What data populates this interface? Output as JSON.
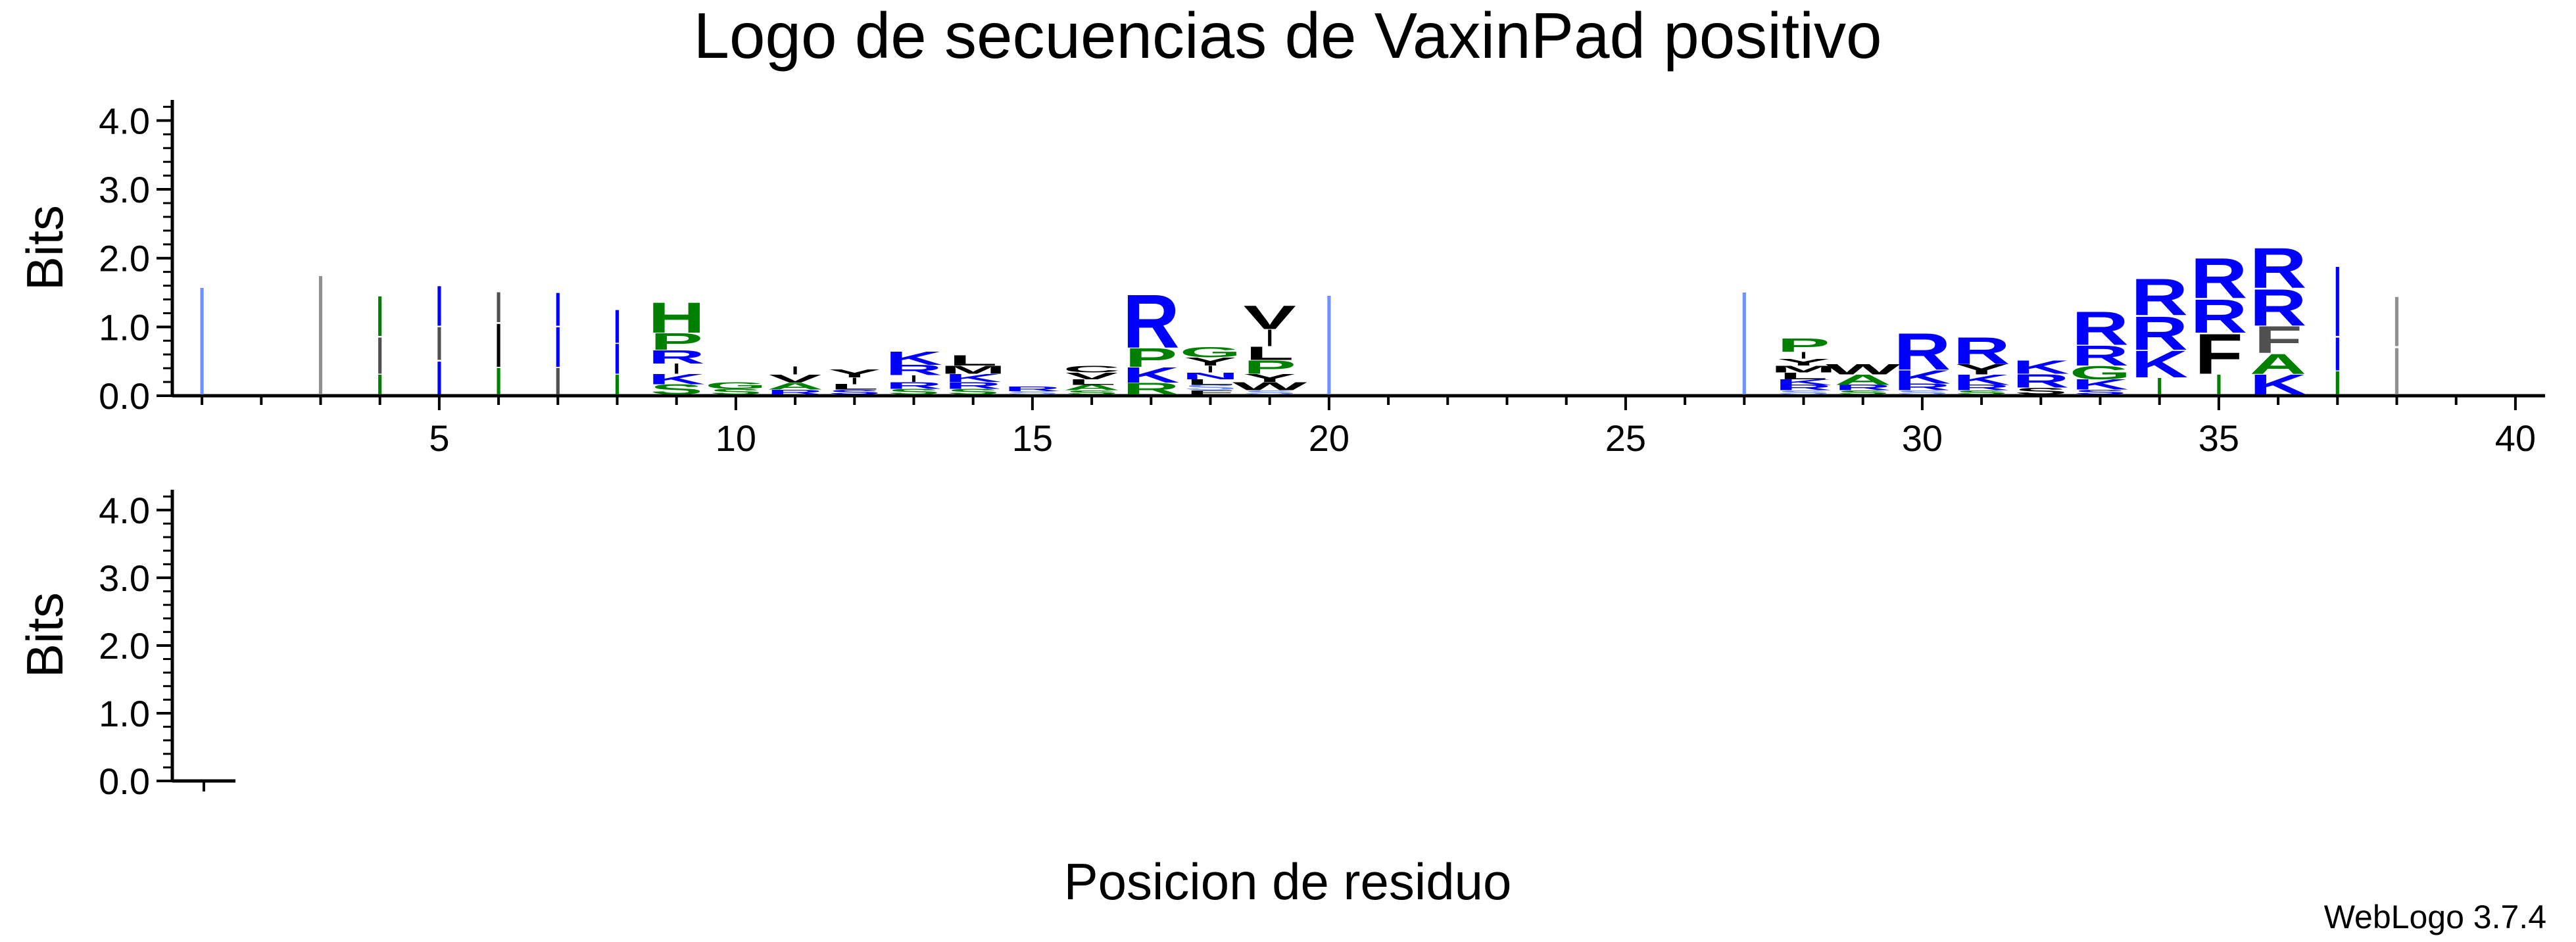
{
  "chart_data": {
    "type": "sequence-logo",
    "title": "Logo de secuencias de VaxinPad positivo",
    "xlabel": "Posicion de residuo",
    "ylabel": "Bits",
    "ylim": [
      0,
      4.3
    ],
    "y_ticks": [
      "0.0",
      "1.0",
      "2.0",
      "3.0",
      "4.0"
    ],
    "x_range": [
      0.5,
      40.5
    ],
    "x_ticks": [
      "5",
      "10",
      "15",
      "20",
      "25",
      "30",
      "35",
      "40"
    ],
    "second_panel_ylabel": "Bits",
    "second_panel_y_ticks": [
      "0.0",
      "1.0",
      "2.0",
      "3.0",
      "4.0"
    ],
    "colors": {
      "basic": "#0000ff",
      "polar": "#008000",
      "hydrophobic": "#000000",
      "pale_blue": "#7090ff"
    },
    "positions": [
      {
        "pos": 1,
        "stack": [
          {
            "letter": "I",
            "h": 1.62,
            "color": "#7090ff"
          }
        ]
      },
      {
        "pos": 3,
        "stack": [
          {
            "letter": "I",
            "h": 1.8,
            "color": "#909090"
          }
        ]
      },
      {
        "pos": 4,
        "stack": [
          {
            "letter": "I",
            "h": 0.3,
            "color": "#008000"
          },
          {
            "letter": "I",
            "h": 0.55,
            "color": "#505050"
          },
          {
            "letter": "I",
            "h": 0.6,
            "color": "#008000"
          }
        ]
      },
      {
        "pos": 5,
        "stack": [
          {
            "letter": "I",
            "h": 0.5,
            "color": "#0000ff"
          },
          {
            "letter": "I",
            "h": 0.5,
            "color": "#505050"
          },
          {
            "letter": "I",
            "h": 0.6,
            "color": "#0000ff"
          }
        ]
      },
      {
        "pos": 6,
        "stack": [
          {
            "letter": "I",
            "h": 0.4,
            "color": "#008000"
          },
          {
            "letter": "I",
            "h": 0.65,
            "color": "#000000"
          },
          {
            "letter": "I",
            "h": 0.45,
            "color": "#505050"
          }
        ]
      },
      {
        "pos": 7,
        "stack": [
          {
            "letter": "I",
            "h": 0.4,
            "color": "#505050"
          },
          {
            "letter": "I",
            "h": 0.6,
            "color": "#0000ff"
          },
          {
            "letter": "I",
            "h": 0.5,
            "color": "#0000ff"
          }
        ]
      },
      {
        "pos": 8,
        "stack": [
          {
            "letter": "I",
            "h": 0.3,
            "color": "#008000"
          },
          {
            "letter": "I",
            "h": 0.45,
            "color": "#0000ff"
          },
          {
            "letter": "I",
            "h": 0.5,
            "color": "#0000ff"
          }
        ]
      },
      {
        "pos": 9,
        "stack": [
          {
            "letter": "S",
            "h": 0.15,
            "color": "#008000"
          },
          {
            "letter": "K",
            "h": 0.15,
            "color": "#0000ff"
          },
          {
            "letter": "I",
            "h": 0.15,
            "color": "#000000"
          },
          {
            "letter": "R",
            "h": 0.2,
            "color": "#0000ff"
          },
          {
            "letter": "P",
            "h": 0.25,
            "color": "#008000"
          },
          {
            "letter": "H",
            "h": 0.45,
            "color": "#008000"
          }
        ]
      },
      {
        "pos": 10,
        "stack": [
          {
            "letter": "S",
            "h": 0.08,
            "color": "#008000"
          },
          {
            "letter": "G",
            "h": 0.1,
            "color": "#008000"
          }
        ]
      },
      {
        "pos": 11,
        "stack": [
          {
            "letter": "R",
            "h": 0.07,
            "color": "#0000ff"
          },
          {
            "letter": "A",
            "h": 0.1,
            "color": "#008000"
          },
          {
            "letter": "V",
            "h": 0.12,
            "color": "#000000"
          },
          {
            "letter": "I",
            "h": 0.12,
            "color": "#000000"
          }
        ]
      },
      {
        "pos": 12,
        "stack": [
          {
            "letter": "S",
            "h": 0.07,
            "color": "#0000ff"
          },
          {
            "letter": "L",
            "h": 0.08,
            "color": "#000000"
          },
          {
            "letter": "I",
            "h": 0.1,
            "color": "#000000"
          },
          {
            "letter": "Y",
            "h": 0.12,
            "color": "#000000"
          }
        ]
      },
      {
        "pos": 13,
        "stack": [
          {
            "letter": "S",
            "h": 0.08,
            "color": "#008000"
          },
          {
            "letter": "R",
            "h": 0.1,
            "color": "#0000ff"
          },
          {
            "letter": "I",
            "h": 0.1,
            "color": "#000000"
          },
          {
            "letter": "R",
            "h": 0.15,
            "color": "#0000ff"
          },
          {
            "letter": "K",
            "h": 0.2,
            "color": "#0000ff"
          }
        ]
      },
      {
        "pos": 14,
        "stack": [
          {
            "letter": "S",
            "h": 0.08,
            "color": "#008000"
          },
          {
            "letter": "R",
            "h": 0.1,
            "color": "#0000ff"
          },
          {
            "letter": "K",
            "h": 0.12,
            "color": "#0000ff"
          },
          {
            "letter": "M",
            "h": 0.12,
            "color": "#000000"
          },
          {
            "letter": "L",
            "h": 0.15,
            "color": "#000000"
          }
        ]
      },
      {
        "pos": 15,
        "stack": [
          {
            "letter": "S",
            "h": 0.05,
            "color": "#7090ff"
          },
          {
            "letter": "R",
            "h": 0.07,
            "color": "#0000ff"
          }
        ]
      },
      {
        "pos": 16,
        "stack": [
          {
            "letter": "S",
            "h": 0.06,
            "color": "#008000"
          },
          {
            "letter": "A",
            "h": 0.08,
            "color": "#008000"
          },
          {
            "letter": "L",
            "h": 0.08,
            "color": "#000000"
          },
          {
            "letter": "V",
            "h": 0.1,
            "color": "#000000"
          },
          {
            "letter": "C",
            "h": 0.1,
            "color": "#000000"
          }
        ]
      },
      {
        "pos": 17,
        "stack": [
          {
            "letter": "R",
            "h": 0.17,
            "color": "#008000"
          },
          {
            "letter": "K",
            "h": 0.23,
            "color": "#0000ff"
          },
          {
            "letter": "P",
            "h": 0.28,
            "color": "#008000"
          },
          {
            "letter": "R",
            "h": 0.8,
            "color": "#0000ff"
          }
        ]
      },
      {
        "pos": 18,
        "stack": [
          {
            "letter": "F",
            "h": 0.06,
            "color": "#000000"
          },
          {
            "letter": "S",
            "h": 0.08,
            "color": "#7090ff"
          },
          {
            "letter": "L",
            "h": 0.08,
            "color": "#000000"
          },
          {
            "letter": "N",
            "h": 0.1,
            "color": "#0000ff"
          },
          {
            "letter": "I",
            "h": 0.1,
            "color": "#000000"
          },
          {
            "letter": "Y",
            "h": 0.12,
            "color": "#000000"
          },
          {
            "letter": "G",
            "h": 0.15,
            "color": "#008000"
          }
        ]
      },
      {
        "pos": 19,
        "stack": [
          {
            "letter": "S",
            "h": 0.06,
            "color": "#7090ff"
          },
          {
            "letter": "W",
            "h": 0.12,
            "color": "#000000"
          },
          {
            "letter": "Y",
            "h": 0.12,
            "color": "#000000"
          },
          {
            "letter": "P",
            "h": 0.2,
            "color": "#008000"
          },
          {
            "letter": "L",
            "h": 0.2,
            "color": "#000000"
          },
          {
            "letter": "I",
            "h": 0.25,
            "color": "#000000"
          },
          {
            "letter": "V",
            "h": 0.35,
            "color": "#000000"
          }
        ]
      },
      {
        "pos": 20,
        "stack": [
          {
            "letter": "I",
            "h": 1.5,
            "color": "#7090ff"
          }
        ]
      },
      {
        "pos": 27,
        "stack": [
          {
            "letter": "I",
            "h": 1.55,
            "color": "#7090ff"
          }
        ]
      },
      {
        "pos": 28,
        "stack": [
          {
            "letter": "S",
            "h": 0.06,
            "color": "#7090ff"
          },
          {
            "letter": "R",
            "h": 0.08,
            "color": "#0000ff"
          },
          {
            "letter": "K",
            "h": 0.08,
            "color": "#0000ff"
          },
          {
            "letter": "L",
            "h": 0.1,
            "color": "#000000"
          },
          {
            "letter": "M",
            "h": 0.1,
            "color": "#000000"
          },
          {
            "letter": "Y",
            "h": 0.1,
            "color": "#000000"
          },
          {
            "letter": "I",
            "h": 0.1,
            "color": "#000000"
          },
          {
            "letter": "P",
            "h": 0.2,
            "color": "#008000"
          }
        ]
      },
      {
        "pos": 29,
        "stack": [
          {
            "letter": "S",
            "h": 0.06,
            "color": "#008000"
          },
          {
            "letter": "R",
            "h": 0.08,
            "color": "#0000ff"
          },
          {
            "letter": "A",
            "h": 0.15,
            "color": "#008000"
          },
          {
            "letter": "W",
            "h": 0.15,
            "color": "#000000"
          }
        ]
      },
      {
        "pos": 30,
        "stack": [
          {
            "letter": "S",
            "h": 0.06,
            "color": "#7090ff"
          },
          {
            "letter": "R",
            "h": 0.1,
            "color": "#0000ff"
          },
          {
            "letter": "K",
            "h": 0.2,
            "color": "#0000ff"
          },
          {
            "letter": "R",
            "h": 0.55,
            "color": "#0000ff"
          }
        ]
      },
      {
        "pos": 31,
        "stack": [
          {
            "letter": "S",
            "h": 0.06,
            "color": "#008000"
          },
          {
            "letter": "R",
            "h": 0.08,
            "color": "#0000ff"
          },
          {
            "letter": "K",
            "h": 0.15,
            "color": "#0000ff"
          },
          {
            "letter": "Y",
            "h": 0.15,
            "color": "#000000"
          },
          {
            "letter": "R",
            "h": 0.4,
            "color": "#0000ff"
          }
        ]
      },
      {
        "pos": 32,
        "stack": [
          {
            "letter": "S",
            "h": 0.1,
            "color": "#000000"
          },
          {
            "letter": "R",
            "h": 0.2,
            "color": "#0000ff"
          },
          {
            "letter": "K",
            "h": 0.2,
            "color": "#0000ff"
          }
        ]
      },
      {
        "pos": 33,
        "stack": [
          {
            "letter": "S",
            "h": 0.07,
            "color": "#0000ff"
          },
          {
            "letter": "K",
            "h": 0.15,
            "color": "#0000ff"
          },
          {
            "letter": "G",
            "h": 0.2,
            "color": "#008000"
          },
          {
            "letter": "R",
            "h": 0.3,
            "color": "#0000ff"
          },
          {
            "letter": "R",
            "h": 0.5,
            "color": "#0000ff"
          }
        ]
      },
      {
        "pos": 34,
        "stack": [
          {
            "letter": "I",
            "h": 0.25,
            "color": "#008000"
          },
          {
            "letter": "K",
            "h": 0.4,
            "color": "#0000ff"
          },
          {
            "letter": "R",
            "h": 0.5,
            "color": "#0000ff"
          },
          {
            "letter": "R",
            "h": 0.55,
            "color": "#0000ff"
          }
        ]
      },
      {
        "pos": 35,
        "stack": [
          {
            "letter": "I",
            "h": 0.3,
            "color": "#008000"
          },
          {
            "letter": "F",
            "h": 0.6,
            "color": "#000000"
          },
          {
            "letter": "R",
            "h": 0.5,
            "color": "#0000ff"
          },
          {
            "letter": "R",
            "h": 0.6,
            "color": "#0000ff"
          }
        ]
      },
      {
        "pos": 36,
        "stack": [
          {
            "letter": "K",
            "h": 0.3,
            "color": "#0000ff"
          },
          {
            "letter": "A",
            "h": 0.3,
            "color": "#008000"
          },
          {
            "letter": "F",
            "h": 0.4,
            "color": "#505050"
          },
          {
            "letter": "R",
            "h": 0.55,
            "color": "#0000ff"
          },
          {
            "letter": "R",
            "h": 0.6,
            "color": "#0000ff"
          }
        ]
      },
      {
        "pos": 37,
        "stack": [
          {
            "letter": "I",
            "h": 0.35,
            "color": "#008000"
          },
          {
            "letter": "I",
            "h": 0.5,
            "color": "#0000ff"
          },
          {
            "letter": "I",
            "h": 1.05,
            "color": "#0000ff"
          }
        ]
      },
      {
        "pos": 38,
        "stack": [
          {
            "letter": "I",
            "h": 0.7,
            "color": "#909090"
          },
          {
            "letter": "I",
            "h": 0.75,
            "color": "#909090"
          }
        ]
      }
    ],
    "credit": "WebLogo 3.7.4"
  }
}
